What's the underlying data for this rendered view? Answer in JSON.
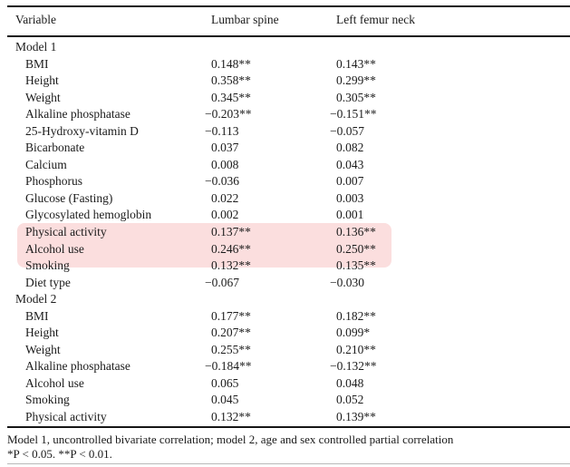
{
  "table": {
    "columns": [
      "Variable",
      "Lumbar spine",
      "Left femur neck"
    ],
    "rows": [
      {
        "variable": "Model 1",
        "lumbar_spine": "",
        "left_femur_neck": "",
        "section": true,
        "highlight": false
      },
      {
        "variable": "BMI",
        "lumbar_spine": "0.148**",
        "left_femur_neck": "0.143**",
        "section": false,
        "highlight": false
      },
      {
        "variable": "Height",
        "lumbar_spine": "0.358**",
        "left_femur_neck": "0.299**",
        "section": false,
        "highlight": false
      },
      {
        "variable": "Weight",
        "lumbar_spine": "0.345**",
        "left_femur_neck": "0.305**",
        "section": false,
        "highlight": false
      },
      {
        "variable": "Alkaline phosphatase",
        "lumbar_spine": "−0.203**",
        "left_femur_neck": "−0.151**",
        "section": false,
        "highlight": false
      },
      {
        "variable": "25-Hydroxy-vitamin D",
        "lumbar_spine": "−0.113",
        "left_femur_neck": "−0.057",
        "section": false,
        "highlight": false
      },
      {
        "variable": "Bicarbonate",
        "lumbar_spine": "0.037",
        "left_femur_neck": "0.082",
        "section": false,
        "highlight": false
      },
      {
        "variable": "Calcium",
        "lumbar_spine": "0.008",
        "left_femur_neck": "0.043",
        "section": false,
        "highlight": false
      },
      {
        "variable": "Phosphorus",
        "lumbar_spine": "−0.036",
        "left_femur_neck": "0.007",
        "section": false,
        "highlight": false
      },
      {
        "variable": "Glucose (Fasting)",
        "lumbar_spine": "0.022",
        "left_femur_neck": "0.003",
        "section": false,
        "highlight": false
      },
      {
        "variable": "Glycosylated hemoglobin",
        "lumbar_spine": "0.002",
        "left_femur_neck": "0.001",
        "section": false,
        "highlight": false
      },
      {
        "variable": "Physical activity",
        "lumbar_spine": "0.137**",
        "left_femur_neck": "0.136**",
        "section": false,
        "highlight": true
      },
      {
        "variable": "Alcohol use",
        "lumbar_spine": "0.246**",
        "left_femur_neck": "0.250**",
        "section": false,
        "highlight": true
      },
      {
        "variable": "Smoking",
        "lumbar_spine": "0.132**",
        "left_femur_neck": "0.135**",
        "section": false,
        "highlight": true
      },
      {
        "variable": "Diet type",
        "lumbar_spine": "−0.067",
        "left_femur_neck": "−0.030",
        "section": false,
        "highlight": false
      },
      {
        "variable": "Model 2",
        "lumbar_spine": "",
        "left_femur_neck": "",
        "section": true,
        "highlight": false
      },
      {
        "variable": "BMI",
        "lumbar_spine": "0.177**",
        "left_femur_neck": "0.182**",
        "section": false,
        "highlight": false
      },
      {
        "variable": "Height",
        "lumbar_spine": "0.207**",
        "left_femur_neck": "0.099*",
        "section": false,
        "highlight": false
      },
      {
        "variable": "Weight",
        "lumbar_spine": "0.255**",
        "left_femur_neck": "0.210**",
        "section": false,
        "highlight": false
      },
      {
        "variable": "Alkaline phosphatase",
        "lumbar_spine": "−0.184**",
        "left_femur_neck": "−0.132**",
        "section": false,
        "highlight": false
      },
      {
        "variable": "Alcohol use",
        "lumbar_spine": "0.065",
        "left_femur_neck": "0.048",
        "section": false,
        "highlight": false
      },
      {
        "variable": "Smoking",
        "lumbar_spine": "0.045",
        "left_femur_neck": "0.052",
        "section": false,
        "highlight": false
      },
      {
        "variable": "Physical activity",
        "lumbar_spine": "0.132**",
        "left_femur_neck": "0.139**",
        "section": false,
        "highlight": false
      }
    ]
  },
  "highlight": {
    "color": "#fbdede"
  },
  "footnotes": {
    "line1": "Model 1, uncontrolled bivariate correlation; model 2, age and sex controlled partial correlation",
    "line2": "*P < 0.05. **P < 0.01."
  }
}
